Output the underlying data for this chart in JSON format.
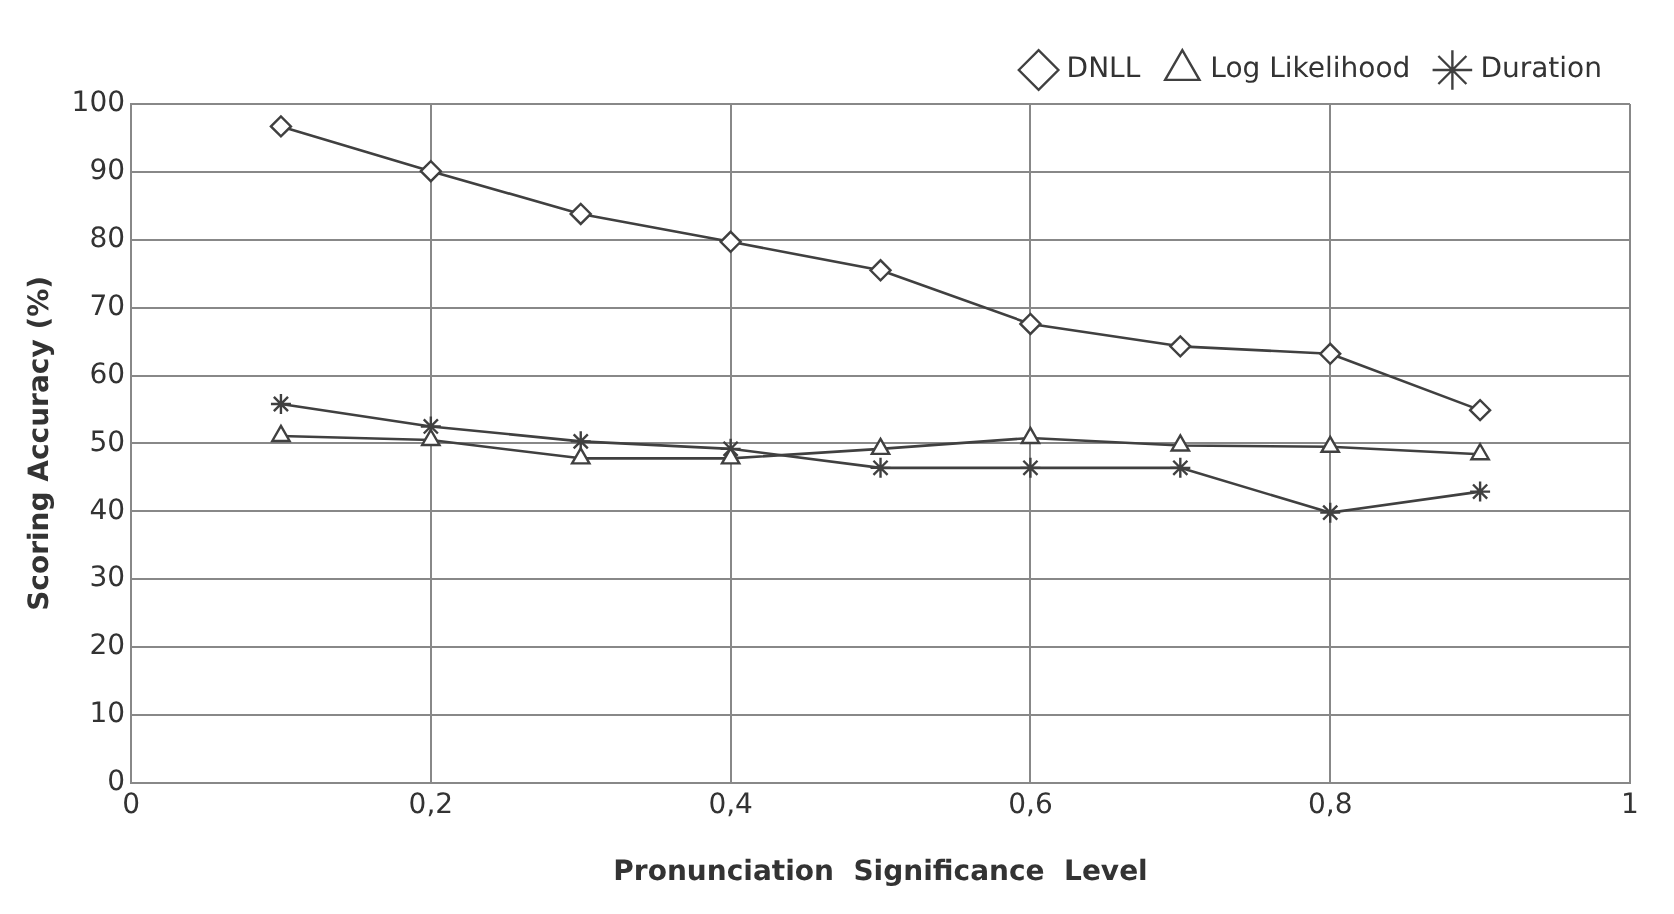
{
  "chart_data": {
    "type": "line",
    "xlabel": "Pronunciation  Significance  Level",
    "ylabel": "Scoring Accuracy (%)",
    "x": [
      0.1,
      0.2,
      0.3,
      0.4,
      0.5,
      0.6,
      0.7,
      0.8,
      0.9
    ],
    "series": [
      {
        "name": "DNLL",
        "color": "#404040",
        "marker": "diamond",
        "values": [
          96.7,
          90.1,
          83.8,
          79.7,
          75.5,
          67.6,
          64.3,
          63.2,
          54.9
        ]
      },
      {
        "name": "Log Likelihood",
        "color": "#404040",
        "marker": "triangle",
        "values": [
          51.1,
          50.5,
          47.8,
          47.8,
          49.2,
          50.8,
          49.7,
          49.5,
          48.4
        ]
      },
      {
        "name": "Duration",
        "color": "#404040",
        "marker": "cross",
        "values": [
          55.8,
          52.5,
          50.3,
          49.2,
          46.4,
          46.4,
          46.4,
          39.8,
          42.9
        ]
      }
    ],
    "xlim": [
      0,
      1
    ],
    "xticks": [
      0,
      {
        "value": 0.2,
        "label": "0,2"
      },
      {
        "value": 0.4,
        "label": "0,4"
      },
      {
        "value": 0.6,
        "label": "0,6"
      },
      {
        "value": 0.8,
        "label": "0,8"
      },
      1
    ],
    "ylim": [
      0,
      100
    ],
    "yticks": [
      0,
      10,
      20,
      30,
      40,
      50,
      60,
      70,
      80,
      90,
      100
    ],
    "grid": true,
    "legend": "top right",
    "line_style": "solid"
  }
}
